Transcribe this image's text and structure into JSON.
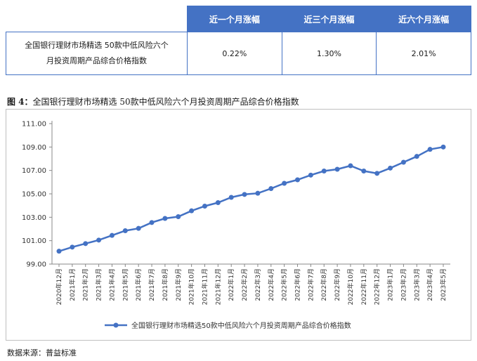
{
  "table": {
    "headers": [
      "近一个月涨幅",
      "近三个月涨幅",
      "近六个月涨幅"
    ],
    "row_name": "全国银行理财市场精选50款中低风险六个月投资周期产品综合价格指数",
    "row_name_line1": "全国银行理财市场精选 50款中低风险六个",
    "row_name_line2": "月投资周期产品综合价格指数",
    "values": [
      "0.22%",
      "1.30%",
      "2.01%"
    ]
  },
  "figure": {
    "label": "图 4：",
    "title": "全国银行理财市场精选 50款中低风险六个月投资周期产品综合价格指数"
  },
  "source": "数据来源：普益标准",
  "colors": {
    "header_bg": "#4472c4",
    "series": "#4472c4"
  },
  "chart_data": {
    "type": "line",
    "title": "全国银行理财市场精选 50款中低风险六个月投资周期产品综合价格指数",
    "x": [
      "2020年12月",
      "2021年1月",
      "2021年2月",
      "2021年3月",
      "2021年4月",
      "2021年5月",
      "2021年6月",
      "2021年7月",
      "2021年8月",
      "2021年9月",
      "2021年10月",
      "2021年11月",
      "2021年12月",
      "2022年1月",
      "2022年2月",
      "2022年3月",
      "2022年4月",
      "2022年5月",
      "2022年6月",
      "2022年7月",
      "2022年8月",
      "2022年9月",
      "2022年10月",
      "2022年11月",
      "2022年12月",
      "2023年1月",
      "2023年2月",
      "2023年3月",
      "2023年4月",
      "2023年5月"
    ],
    "series": [
      {
        "name": "全国银行理财市场精选50款中低风险六个月投资周期产品综合价格指数",
        "values": [
          100.1,
          100.45,
          100.75,
          101.05,
          101.45,
          101.85,
          102.05,
          102.55,
          102.9,
          103.05,
          103.55,
          103.95,
          104.25,
          104.7,
          104.95,
          105.05,
          105.45,
          105.9,
          106.2,
          106.6,
          106.95,
          107.1,
          107.4,
          106.95,
          106.75,
          107.2,
          107.7,
          108.2,
          108.8,
          109.0
        ]
      }
    ],
    "yticks": [
      "99.00",
      "101.00",
      "103.00",
      "105.00",
      "107.00",
      "109.00",
      "111.00"
    ],
    "ylim": [
      99,
      111
    ],
    "xlabel": "",
    "ylabel": "",
    "grid": false,
    "legend": "bottom"
  }
}
